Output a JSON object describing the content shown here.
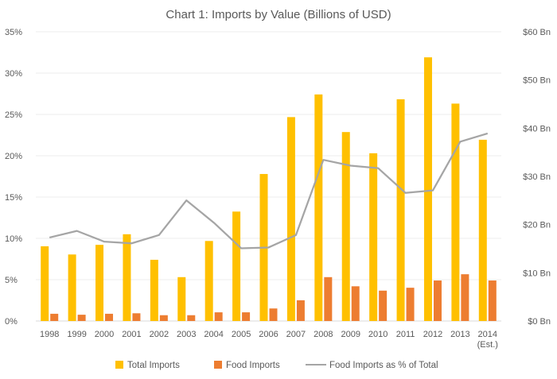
{
  "chart_data": {
    "type": "bar",
    "title": "Chart 1: Imports by Value (Billions of USD)",
    "categories": [
      "1998",
      "1999",
      "2000",
      "2001",
      "2002",
      "2003",
      "2004",
      "2005",
      "2006",
      "2007",
      "2008",
      "2009",
      "2010",
      "2011",
      "2012",
      "2013",
      "2014"
    ],
    "category_sublabels": {
      "2014": "(Est.)"
    },
    "series": [
      {
        "name": "Total Imports",
        "type": "bar",
        "axis": "right",
        "color": "#FFC000",
        "values": [
          15.5,
          13.8,
          15.8,
          18.0,
          12.7,
          9.1,
          16.6,
          22.7,
          30.5,
          42.3,
          47.0,
          39.2,
          34.8,
          46.0,
          54.7,
          45.1,
          37.6
        ]
      },
      {
        "name": "Food Imports",
        "type": "bar",
        "axis": "right",
        "color": "#ED7D31",
        "values": [
          1.5,
          1.3,
          1.5,
          1.6,
          1.2,
          1.2,
          1.8,
          1.8,
          2.6,
          4.3,
          9.1,
          7.2,
          6.3,
          6.9,
          8.4,
          9.7,
          8.4
        ]
      },
      {
        "name": "Food Imports as % of Total",
        "type": "line",
        "axis": "left",
        "color": "#A5A5A5",
        "values": [
          10.1,
          10.9,
          9.6,
          9.4,
          10.4,
          14.6,
          11.9,
          8.8,
          8.9,
          10.4,
          19.5,
          18.8,
          18.5,
          15.5,
          15.8,
          21.7,
          22.7
        ]
      }
    ],
    "left_axis": {
      "ylim": [
        0,
        35
      ],
      "ticks": [
        "0%",
        "5%",
        "10%",
        "15%",
        "20%",
        "25%",
        "30%",
        "35%"
      ]
    },
    "right_axis": {
      "ylim": [
        0,
        60
      ],
      "ticks": [
        "$0 Bn",
        "$10 Bn",
        "$20 Bn",
        "$30 Bn",
        "$40 Bn",
        "$50 Bn",
        "$60 Bn"
      ]
    },
    "grid": true,
    "legend_position": "bottom"
  }
}
